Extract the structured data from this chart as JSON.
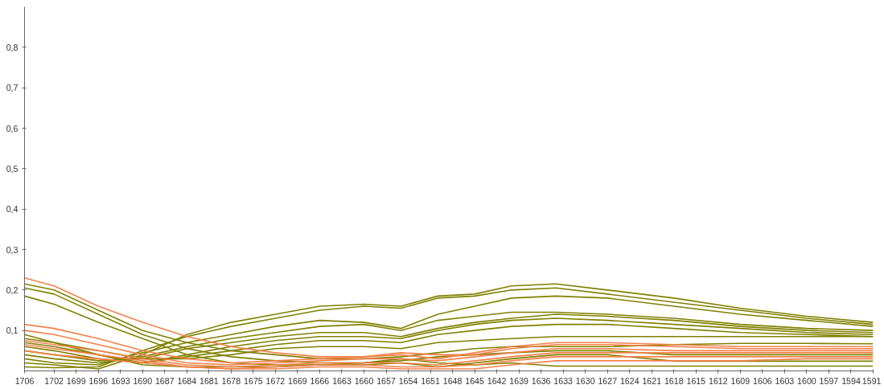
{
  "chart_data": {
    "type": "line",
    "x": [
      1706,
      1702,
      1696,
      1690,
      1684,
      1678,
      1672,
      1666,
      1660,
      1655,
      1650,
      1645,
      1640,
      1634,
      1627,
      1618,
      1609,
      1600,
      1591
    ],
    "xlim": [
      1706,
      1591
    ],
    "xticks": [
      1706,
      1702,
      1699,
      1696,
      1693,
      1690,
      1687,
      1684,
      1681,
      1678,
      1675,
      1672,
      1669,
      1666,
      1663,
      1660,
      1657,
      1654,
      1651,
      1648,
      1645,
      1642,
      1639,
      1636,
      1633,
      1630,
      1627,
      1624,
      1621,
      1618,
      1615,
      1612,
      1609,
      1606,
      1603,
      1600,
      1597,
      1594,
      1591
    ],
    "ylim": [
      0,
      0.9
    ],
    "yticks": [
      {
        "value": 0.1,
        "label": "0,1"
      },
      {
        "value": 0.2,
        "label": "0,2"
      },
      {
        "value": 0.3,
        "label": "0,3"
      },
      {
        "value": 0.4,
        "label": "0,4"
      },
      {
        "value": 0.5,
        "label": "0,5"
      },
      {
        "value": 0.6,
        "label": "0,6"
      },
      {
        "value": 0.7,
        "label": "0,7"
      },
      {
        "value": 0.8,
        "label": "0,8"
      }
    ],
    "grid": false,
    "marker": "none",
    "line_style": "solid",
    "series": [
      {
        "color": "#808000",
        "values": [
          0.02,
          0.015,
          0.005,
          0.04,
          0.09,
          0.12,
          0.14,
          0.16,
          0.165,
          0.16,
          0.185,
          0.19,
          0.21,
          0.215,
          0.2,
          0.18,
          0.155,
          0.135,
          0.12
        ]
      },
      {
        "color": "#808000",
        "values": [
          0.01,
          0.008,
          0.01,
          0.05,
          0.085,
          0.11,
          0.13,
          0.15,
          0.16,
          0.155,
          0.18,
          0.185,
          0.2,
          0.205,
          0.19,
          0.17,
          0.15,
          0.13,
          0.115
        ]
      },
      {
        "color": "#808000",
        "values": [
          0.03,
          0.02,
          0.015,
          0.045,
          0.07,
          0.09,
          0.11,
          0.125,
          0.12,
          0.105,
          0.14,
          0.16,
          0.18,
          0.185,
          0.18,
          0.16,
          0.14,
          0.125,
          0.11
        ]
      },
      {
        "color": "#808000",
        "values": [
          0.04,
          0.03,
          0.02,
          0.035,
          0.06,
          0.08,
          0.095,
          0.11,
          0.115,
          0.1,
          0.125,
          0.135,
          0.145,
          0.145,
          0.14,
          0.13,
          0.115,
          0.105,
          0.1
        ]
      },
      {
        "color": "#808000",
        "values": [
          0.05,
          0.04,
          0.025,
          0.03,
          0.055,
          0.07,
          0.085,
          0.095,
          0.095,
          0.085,
          0.105,
          0.12,
          0.13,
          0.14,
          0.135,
          0.125,
          0.11,
          0.1,
          0.095
        ]
      },
      {
        "color": "#808000",
        "values": [
          0.06,
          0.05,
          0.03,
          0.02,
          0.04,
          0.06,
          0.075,
          0.085,
          0.085,
          0.08,
          0.1,
          0.115,
          0.125,
          0.13,
          0.125,
          0.115,
          0.105,
          0.095,
          0.09
        ]
      },
      {
        "color": "#808000",
        "values": [
          0.07,
          0.06,
          0.04,
          0.02,
          0.035,
          0.05,
          0.065,
          0.075,
          0.075,
          0.07,
          0.09,
          0.1,
          0.11,
          0.115,
          0.115,
          0.105,
          0.095,
          0.09,
          0.085
        ]
      },
      {
        "color": "#808000",
        "values": [
          0.08,
          0.07,
          0.05,
          0.03,
          0.03,
          0.04,
          0.055,
          0.06,
          0.06,
          0.055,
          0.07,
          0.075,
          0.08,
          0.085,
          0.085,
          0.085,
          0.085,
          0.085,
          0.085
        ]
      },
      {
        "color": "#808000",
        "values": [
          0.215,
          0.2,
          0.15,
          0.1,
          0.07,
          0.05,
          0.04,
          0.03,
          0.03,
          0.035,
          0.045,
          0.055,
          0.06,
          0.06,
          0.06,
          0.065,
          0.068,
          0.068,
          0.067
        ]
      },
      {
        "color": "#808000",
        "values": [
          0.205,
          0.19,
          0.14,
          0.09,
          0.055,
          0.035,
          0.025,
          0.02,
          0.02,
          0.025,
          0.035,
          0.04,
          0.045,
          0.05,
          0.05,
          0.04,
          0.04,
          0.04,
          0.04
        ]
      },
      {
        "color": "#808000",
        "values": [
          0.185,
          0.165,
          0.12,
          0.08,
          0.04,
          0.02,
          0.015,
          0.015,
          0.015,
          0.02,
          0.01,
          0.02,
          0.03,
          0.04,
          0.04,
          0.024,
          0.024,
          0.024,
          0.024
        ]
      },
      {
        "color": "#808000",
        "values": [
          0.09,
          0.07,
          0.04,
          0.015,
          0.01,
          0.01,
          0.01,
          0.015,
          0.02,
          0.03,
          0.02,
          0.015,
          0.02,
          0.012,
          0.012,
          0.012,
          0.012,
          0.012,
          0.012
        ]
      },
      {
        "color": "#f4814a",
        "values": [
          0.23,
          0.21,
          0.16,
          0.12,
          0.085,
          0.06,
          0.045,
          0.035,
          0.035,
          0.04,
          0.03,
          0.045,
          0.06,
          0.07,
          0.07,
          0.065,
          0.06,
          0.06,
          0.06
        ]
      },
      {
        "color": "#f4814a",
        "values": [
          0.115,
          0.105,
          0.08,
          0.05,
          0.03,
          0.02,
          0.025,
          0.03,
          0.035,
          0.045,
          0.04,
          0.04,
          0.055,
          0.065,
          0.065,
          0.06,
          0.055,
          0.055,
          0.055
        ]
      },
      {
        "color": "#f4814a",
        "values": [
          0.1,
          0.09,
          0.065,
          0.04,
          0.02,
          0.015,
          0.02,
          0.025,
          0.03,
          0.03,
          0.025,
          0.035,
          0.045,
          0.055,
          0.055,
          0.05,
          0.05,
          0.05,
          0.05
        ]
      },
      {
        "color": "#f4814a",
        "values": [
          0.075,
          0.065,
          0.05,
          0.03,
          0.015,
          0.01,
          0.015,
          0.02,
          0.02,
          0.02,
          0.015,
          0.025,
          0.035,
          0.045,
          0.045,
          0.045,
          0.045,
          0.045,
          0.045
        ]
      },
      {
        "color": "#f4814a",
        "values": [
          0.065,
          0.055,
          0.04,
          0.025,
          0.01,
          0.005,
          0.01,
          0.015,
          0.015,
          0.01,
          0.01,
          0.015,
          0.025,
          0.035,
          0.035,
          0.035,
          0.035,
          0.035,
          0.035
        ]
      },
      {
        "color": "#f4814a",
        "values": [
          0.05,
          0.04,
          0.03,
          0.02,
          0.01,
          0.005,
          0.005,
          0.01,
          0.01,
          0.005,
          0.005,
          0.005,
          0.015,
          0.025,
          0.025,
          0.025,
          0.025,
          0.03,
          0.03
        ]
      }
    ]
  }
}
